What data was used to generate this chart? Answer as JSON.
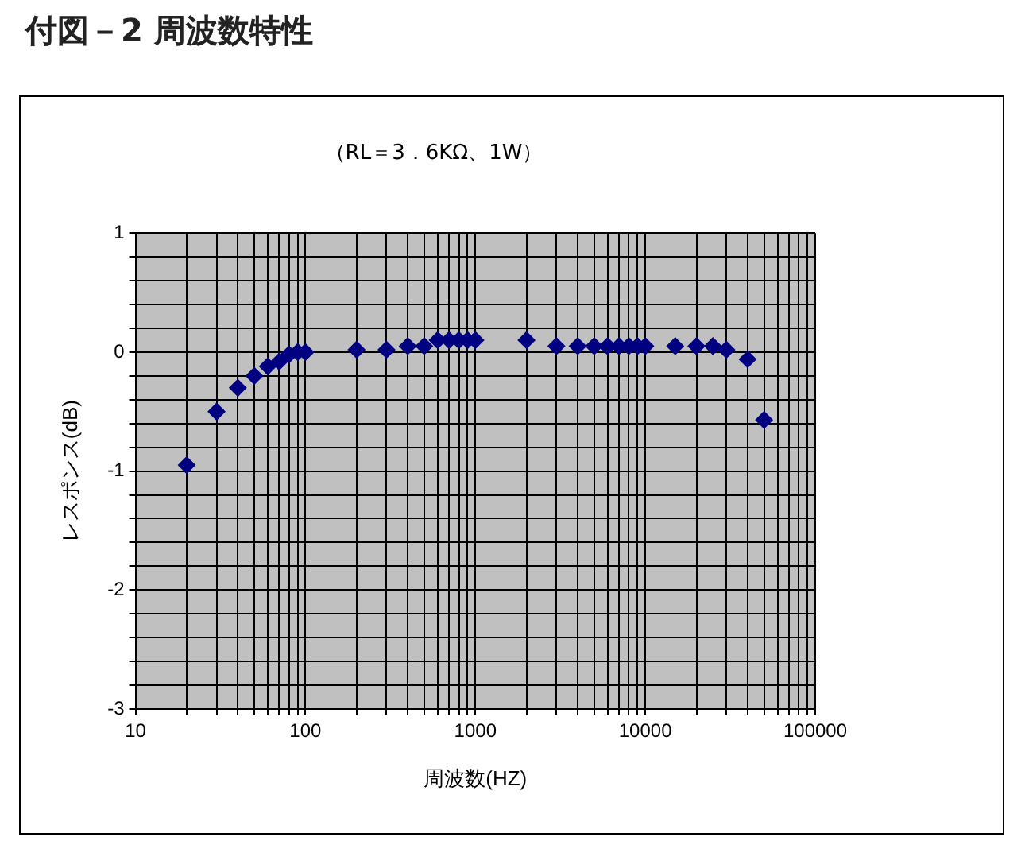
{
  "chart_data": {
    "type": "scatter",
    "title": "付図－2 周波数特性",
    "subtitle": "（RL＝3．6KΩ、1W）",
    "xlabel": "周波数(HZ)",
    "ylabel": "レスポンス(dB)",
    "x": [
      20,
      30,
      40,
      50,
      60,
      70,
      80,
      90,
      100,
      200,
      300,
      400,
      500,
      600,
      700,
      800,
      900,
      1000,
      2000,
      3000,
      4000,
      5000,
      6000,
      7000,
      8000,
      9000,
      10000,
      15000,
      20000,
      25000,
      30000,
      40000,
      50000
    ],
    "series": [
      {
        "color": "#000080",
        "values": [
          -0.95,
          -0.5,
          -0.3,
          -0.2,
          -0.12,
          -0.08,
          -0.02,
          0,
          0,
          0.02,
          0.02,
          0.05,
          0.05,
          0.1,
          0.1,
          0.1,
          0.1,
          0.1,
          0.1,
          0.05,
          0.05,
          0.05,
          0.05,
          0.05,
          0.05,
          0.05,
          0.05,
          0.05,
          0.05,
          0.05,
          0.02,
          -0.06,
          -0.57
        ]
      }
    ],
    "log": "x",
    "xlim": [
      10,
      100000
    ],
    "ylim": [
      -3,
      1
    ],
    "xticks": [
      10,
      {
        "value": 20,
        "label": null
      },
      {
        "value": 30,
        "label": null
      },
      {
        "value": 40,
        "label": null
      },
      {
        "value": 50,
        "label": null
      },
      {
        "value": 60,
        "label": null
      },
      {
        "value": 70,
        "label": null
      },
      {
        "value": 80,
        "label": null
      },
      {
        "value": 90,
        "label": null
      },
      100,
      {
        "value": 200,
        "label": null
      },
      {
        "value": 300,
        "label": null
      },
      {
        "value": 400,
        "label": null
      },
      {
        "value": 500,
        "label": null
      },
      {
        "value": 600,
        "label": null
      },
      {
        "value": 700,
        "label": null
      },
      {
        "value": 800,
        "label": null
      },
      {
        "value": 900,
        "label": null
      },
      1000,
      {
        "value": 2000,
        "label": null
      },
      {
        "value": 3000,
        "label": null
      },
      {
        "value": 4000,
        "label": null
      },
      {
        "value": 5000,
        "label": null
      },
      {
        "value": 6000,
        "label": null
      },
      {
        "value": 7000,
        "label": null
      },
      {
        "value": 8000,
        "label": null
      },
      {
        "value": 9000,
        "label": null
      },
      10000,
      {
        "value": 20000,
        "label": null
      },
      {
        "value": 30000,
        "label": null
      },
      {
        "value": 40000,
        "label": null
      },
      {
        "value": 50000,
        "label": null
      },
      {
        "value": 60000,
        "label": null
      },
      {
        "value": 70000,
        "label": null
      },
      {
        "value": 80000,
        "label": null
      },
      {
        "value": 90000,
        "label": null
      },
      100000
    ],
    "yticks": [
      -3,
      {
        "value": -2.8,
        "label": null
      },
      {
        "value": -2.6,
        "label": null
      },
      {
        "value": -2.4,
        "label": null
      },
      {
        "value": -2.2,
        "label": null
      },
      -2,
      {
        "value": -1.8,
        "label": null
      },
      {
        "value": -1.6,
        "label": null
      },
      {
        "value": -1.4,
        "label": null
      },
      {
        "value": -1.2,
        "label": null
      },
      -1,
      {
        "value": -0.8,
        "label": null
      },
      {
        "value": -0.6,
        "label": null
      },
      {
        "value": -0.4,
        "label": null
      },
      {
        "value": -0.2,
        "label": null
      },
      0,
      {
        "value": 0.2,
        "label": null
      },
      {
        "value": 0.4,
        "label": null
      },
      {
        "value": 0.6,
        "label": null
      },
      {
        "value": 0.8,
        "label": null
      },
      1
    ],
    "grid": true,
    "marker": "diamond"
  }
}
